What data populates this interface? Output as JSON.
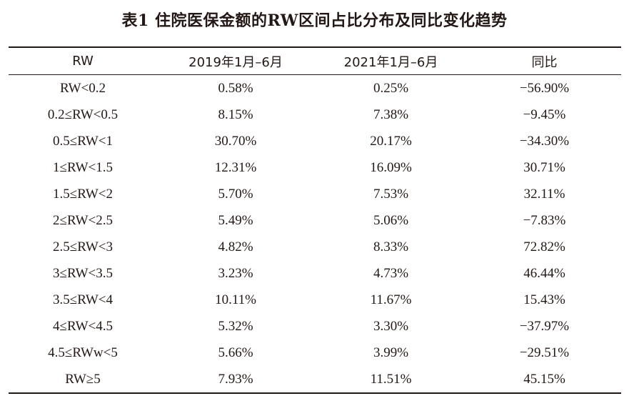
{
  "caption": "表1  住院医保金额的RW区间占比分布及同比变化趋势",
  "table": {
    "headers": [
      "RW",
      "2019年1月–6月",
      "2021年1月–6月",
      "同比"
    ],
    "rows": [
      [
        "RW<0.2",
        "0.58%",
        "0.25%",
        "−56.90%"
      ],
      [
        "0.2≤RW<0.5",
        "8.15%",
        "7.38%",
        "−9.45%"
      ],
      [
        "0.5≤RW<1",
        "30.70%",
        "20.17%",
        "−34.30%"
      ],
      [
        "1≤RW<1.5",
        "12.31%",
        "16.09%",
        "30.71%"
      ],
      [
        "1.5≤RW<2",
        "5.70%",
        "7.53%",
        "32.11%"
      ],
      [
        "2≤RW<2.5",
        "5.49%",
        "5.06%",
        "−7.83%"
      ],
      [
        "2.5≤RW<3",
        "4.82%",
        "8.33%",
        "72.82%"
      ],
      [
        "3≤RW<3.5",
        "3.23%",
        "4.73%",
        "46.44%"
      ],
      [
        "3.5≤RW<4",
        "10.11%",
        "11.67%",
        "15.43%"
      ],
      [
        "4≤RW<4.5",
        "5.32%",
        "3.30%",
        "−37.97%"
      ],
      [
        "4.5≤RWw<5",
        "5.66%",
        "3.99%",
        "−29.51%"
      ],
      [
        "RW≥5",
        "7.93%",
        "11.51%",
        "45.15%"
      ]
    ]
  }
}
